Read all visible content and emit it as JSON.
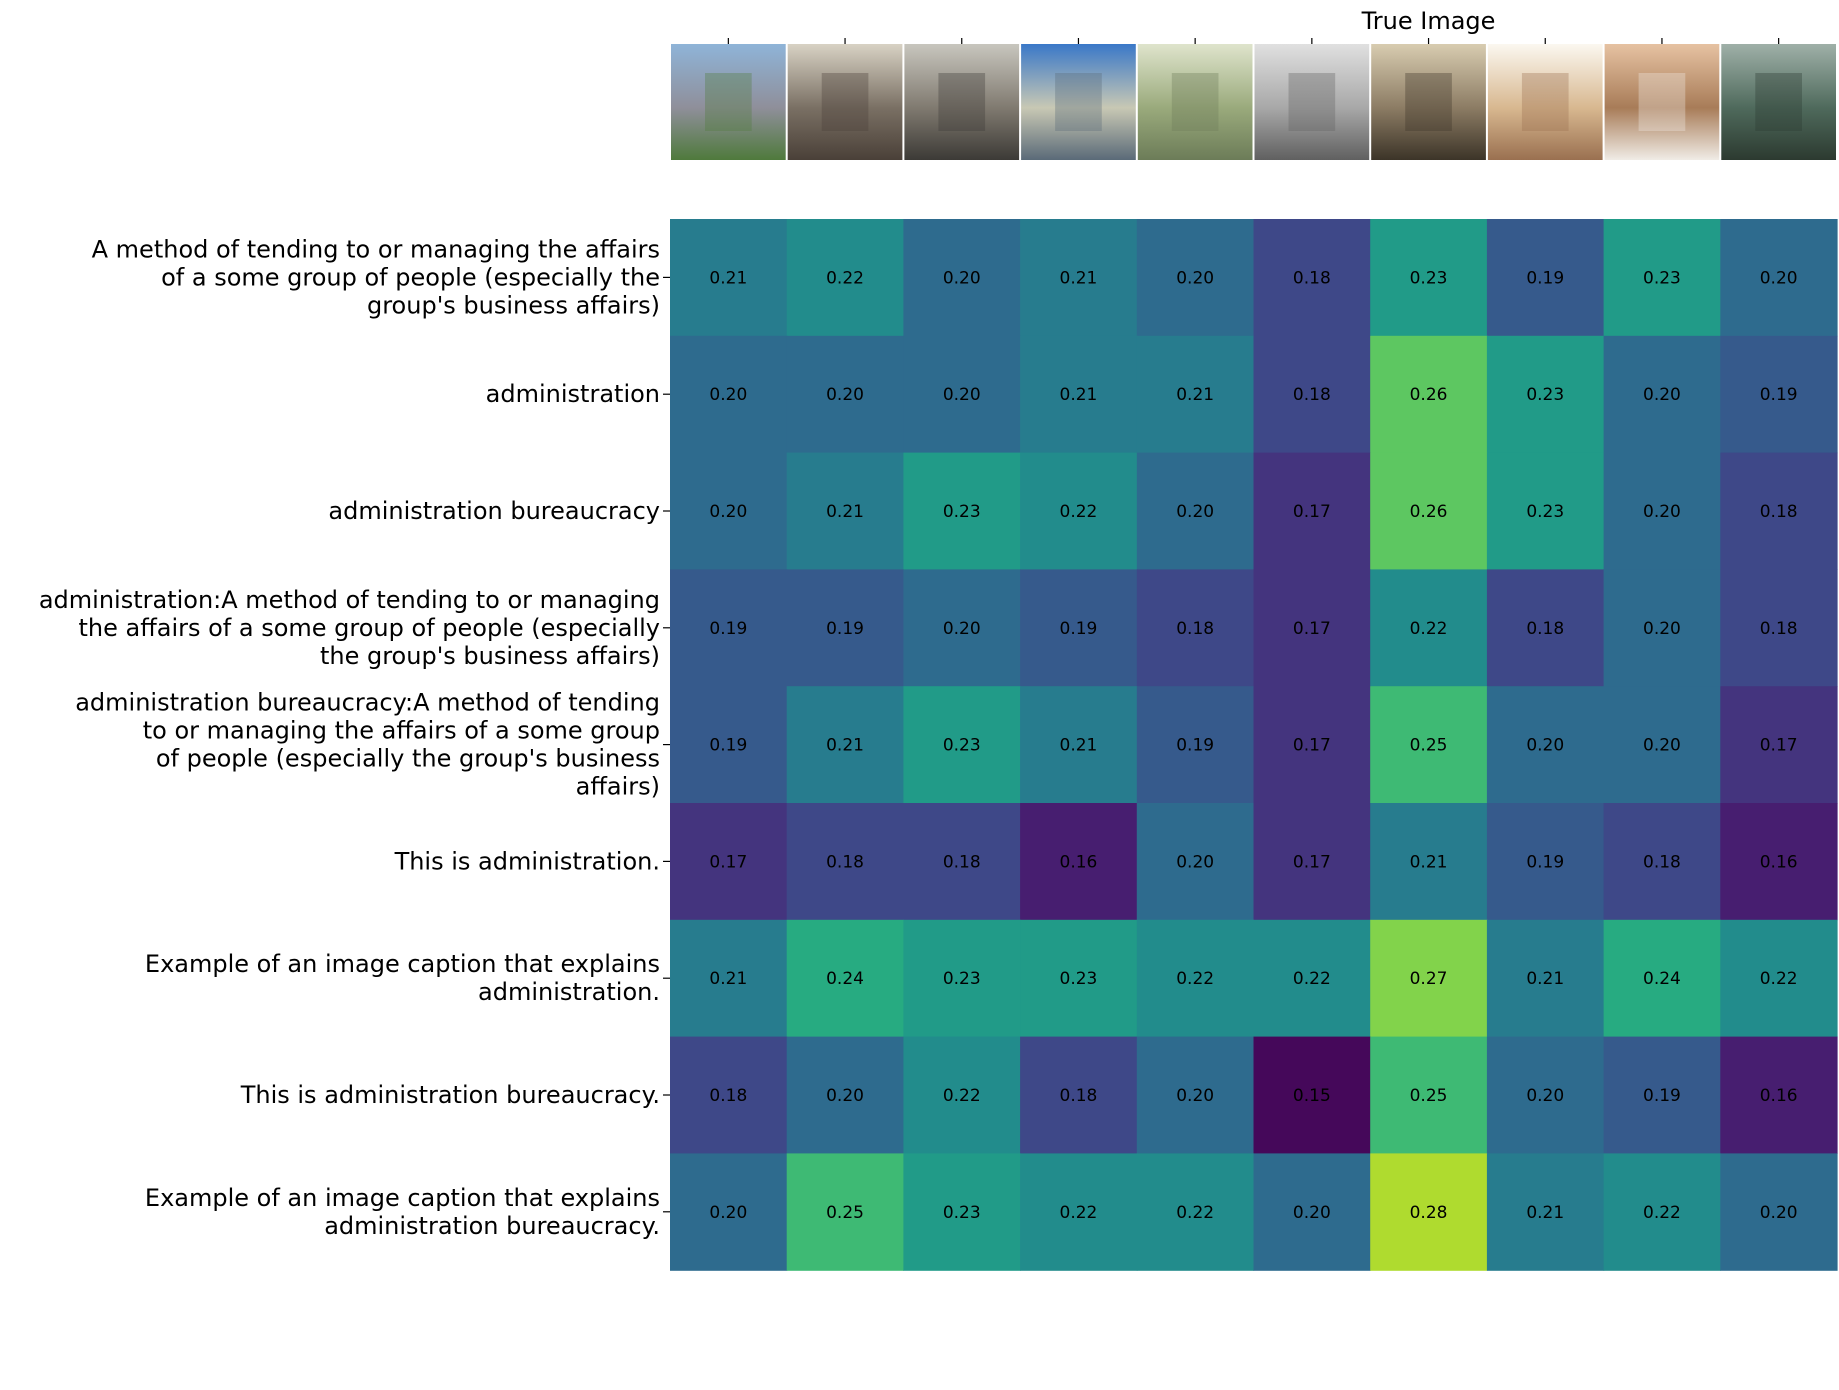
{
  "chart_data": {
    "type": "heatmap",
    "colormap": "viridis",
    "value_range": [
      0.15,
      0.28
    ],
    "column_annotation": {
      "label": "True Image",
      "column_index": 6
    },
    "columns": [
      {
        "icon": "factory-buildings-photo",
        "colors": [
          "#8fb4d8",
          "#8f8f9a",
          "#4f7a3c"
        ]
      },
      {
        "icon": "vintage-office-workers-photo",
        "colors": [
          "#d8d2c4",
          "#7a7064",
          "#4a4038"
        ]
      },
      {
        "icon": "files-and-folders-photo",
        "colors": [
          "#c8c6be",
          "#807a70",
          "#3c3a36"
        ]
      },
      {
        "icon": "skyscraper-photo",
        "colors": [
          "#3a78c8",
          "#c8c8b4",
          "#5a6a78"
        ]
      },
      {
        "icon": "banknote-photo",
        "colors": [
          "#dfe4cc",
          "#9aaa7c",
          "#6c7c58"
        ]
      },
      {
        "icon": "sprinter-photo",
        "colors": [
          "#e0e0e0",
          "#a8a8a8",
          "#606060"
        ]
      },
      {
        "icon": "old-office-room-photo",
        "colors": [
          "#d8ccb0",
          "#8c7c64",
          "#3c3428"
        ]
      },
      {
        "icon": "banknotes-stack-photo",
        "colors": [
          "#fbf8f0",
          "#d8b890",
          "#9a7050"
        ]
      },
      {
        "icon": "woman-eye-makeup-photo",
        "colors": [
          "#e6c2a2",
          "#a87c58",
          "#f0ece6"
        ]
      },
      {
        "icon": "container-ship-photo",
        "colors": [
          "#9fb0a8",
          "#4f6a5c",
          "#2c3a30"
        ]
      }
    ],
    "rows": [
      {
        "label_lines": [
          "A method of tending to or managing the affairs",
          "of a some group of people (especially the",
          "group's business affairs)"
        ],
        "values": [
          0.21,
          0.22,
          0.2,
          0.21,
          0.2,
          0.18,
          0.23,
          0.19,
          0.23,
          0.2
        ],
        "value_labels": [
          "0.21",
          "0.22",
          "0.20",
          "0.21",
          "0.20",
          "0.18",
          "0.23",
          "0.19",
          "0.23",
          "0.20"
        ]
      },
      {
        "label_lines": [
          "administration"
        ],
        "values": [
          0.2,
          0.2,
          0.2,
          0.21,
          0.21,
          0.18,
          0.26,
          0.23,
          0.2,
          0.19
        ],
        "value_labels": [
          "0.20",
          "0.20",
          "0.20",
          "0.21",
          "0.21",
          "0.18",
          "0.26",
          "0.23",
          "0.20",
          "0.19"
        ]
      },
      {
        "label_lines": [
          "administration bureaucracy"
        ],
        "values": [
          0.2,
          0.21,
          0.23,
          0.22,
          0.2,
          0.17,
          0.26,
          0.23,
          0.2,
          0.18
        ],
        "value_labels": [
          "0.20",
          "0.21",
          "0.23",
          "0.22",
          "0.20",
          "0.17",
          "0.26",
          "0.23",
          "0.20",
          "0.18"
        ]
      },
      {
        "label_lines": [
          "administration:A method of tending to or managing",
          "the affairs of a some group of people (especially",
          "the group's business affairs)"
        ],
        "values": [
          0.19,
          0.19,
          0.2,
          0.19,
          0.18,
          0.17,
          0.22,
          0.18,
          0.2,
          0.18
        ],
        "value_labels": [
          "0.19",
          "0.19",
          "0.20",
          "0.19",
          "0.18",
          "0.17",
          "0.22",
          "0.18",
          "0.20",
          "0.18"
        ]
      },
      {
        "label_lines": [
          "administration bureaucracy:A method of tending",
          "to or managing the affairs of a some group",
          "of people (especially the group's business",
          "affairs)"
        ],
        "values": [
          0.19,
          0.21,
          0.23,
          0.21,
          0.19,
          0.17,
          0.25,
          0.2,
          0.2,
          0.17
        ],
        "value_labels": [
          "0.19",
          "0.21",
          "0.23",
          "0.21",
          "0.19",
          "0.17",
          "0.25",
          "0.20",
          "0.20",
          "0.17"
        ]
      },
      {
        "label_lines": [
          "This is administration."
        ],
        "values": [
          0.17,
          0.18,
          0.18,
          0.16,
          0.2,
          0.17,
          0.21,
          0.19,
          0.18,
          0.16
        ],
        "value_labels": [
          "0.17",
          "0.18",
          "0.18",
          "0.16",
          "0.20",
          "0.17",
          "0.21",
          "0.19",
          "0.18",
          "0.16"
        ]
      },
      {
        "label_lines": [
          "Example of an image caption that explains",
          "administration."
        ],
        "values": [
          0.21,
          0.24,
          0.23,
          0.23,
          0.22,
          0.22,
          0.27,
          0.21,
          0.24,
          0.22
        ],
        "value_labels": [
          "0.21",
          "0.24",
          "0.23",
          "0.23",
          "0.22",
          "0.22",
          "0.27",
          "0.21",
          "0.24",
          "0.22"
        ]
      },
      {
        "label_lines": [
          "This is administration bureaucracy."
        ],
        "values": [
          0.18,
          0.2,
          0.22,
          0.18,
          0.2,
          0.15,
          0.25,
          0.2,
          0.19,
          0.16
        ],
        "value_labels": [
          "0.18",
          "0.20",
          "0.22",
          "0.18",
          "0.20",
          "0.15",
          "0.25",
          "0.20",
          "0.19",
          "0.16"
        ]
      },
      {
        "label_lines": [
          "Example of an image caption that explains",
          "administration bureaucracy."
        ],
        "values": [
          0.2,
          0.25,
          0.23,
          0.22,
          0.22,
          0.2,
          0.28,
          0.21,
          0.22,
          0.2
        ],
        "value_labels": [
          "0.20",
          "0.25",
          "0.23",
          "0.22",
          "0.22",
          "0.20",
          "0.28",
          "0.21",
          "0.22",
          "0.20"
        ]
      }
    ]
  }
}
